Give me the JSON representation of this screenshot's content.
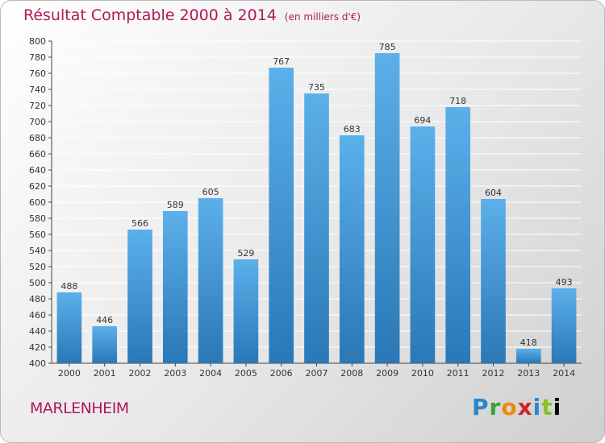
{
  "header": {
    "title": "Résultat Comptable 2000 à 2014",
    "unit": "(en milliers d'€)"
  },
  "footer": {
    "city": "MARLENHEIM",
    "logo": "Proxiti"
  },
  "colors": {
    "title": "#b0185e",
    "bar_top": "#5cb0ea",
    "bar_bottom": "#2a78b6",
    "grid": "#ffffff"
  },
  "chart_data": {
    "type": "bar",
    "title": "Résultat Comptable 2000 à 2014",
    "ylabel": "en milliers d'€",
    "xlabel": "",
    "categories": [
      "2000",
      "2001",
      "2002",
      "2003",
      "2004",
      "2005",
      "2006",
      "2007",
      "2008",
      "2009",
      "2010",
      "2011",
      "2012",
      "2013",
      "2014"
    ],
    "values": [
      488,
      446,
      566,
      589,
      605,
      529,
      767,
      735,
      683,
      785,
      694,
      718,
      604,
      418,
      493
    ],
    "ylim": [
      400,
      800
    ],
    "ytick_step": 20,
    "grid": true,
    "legend": "none"
  }
}
